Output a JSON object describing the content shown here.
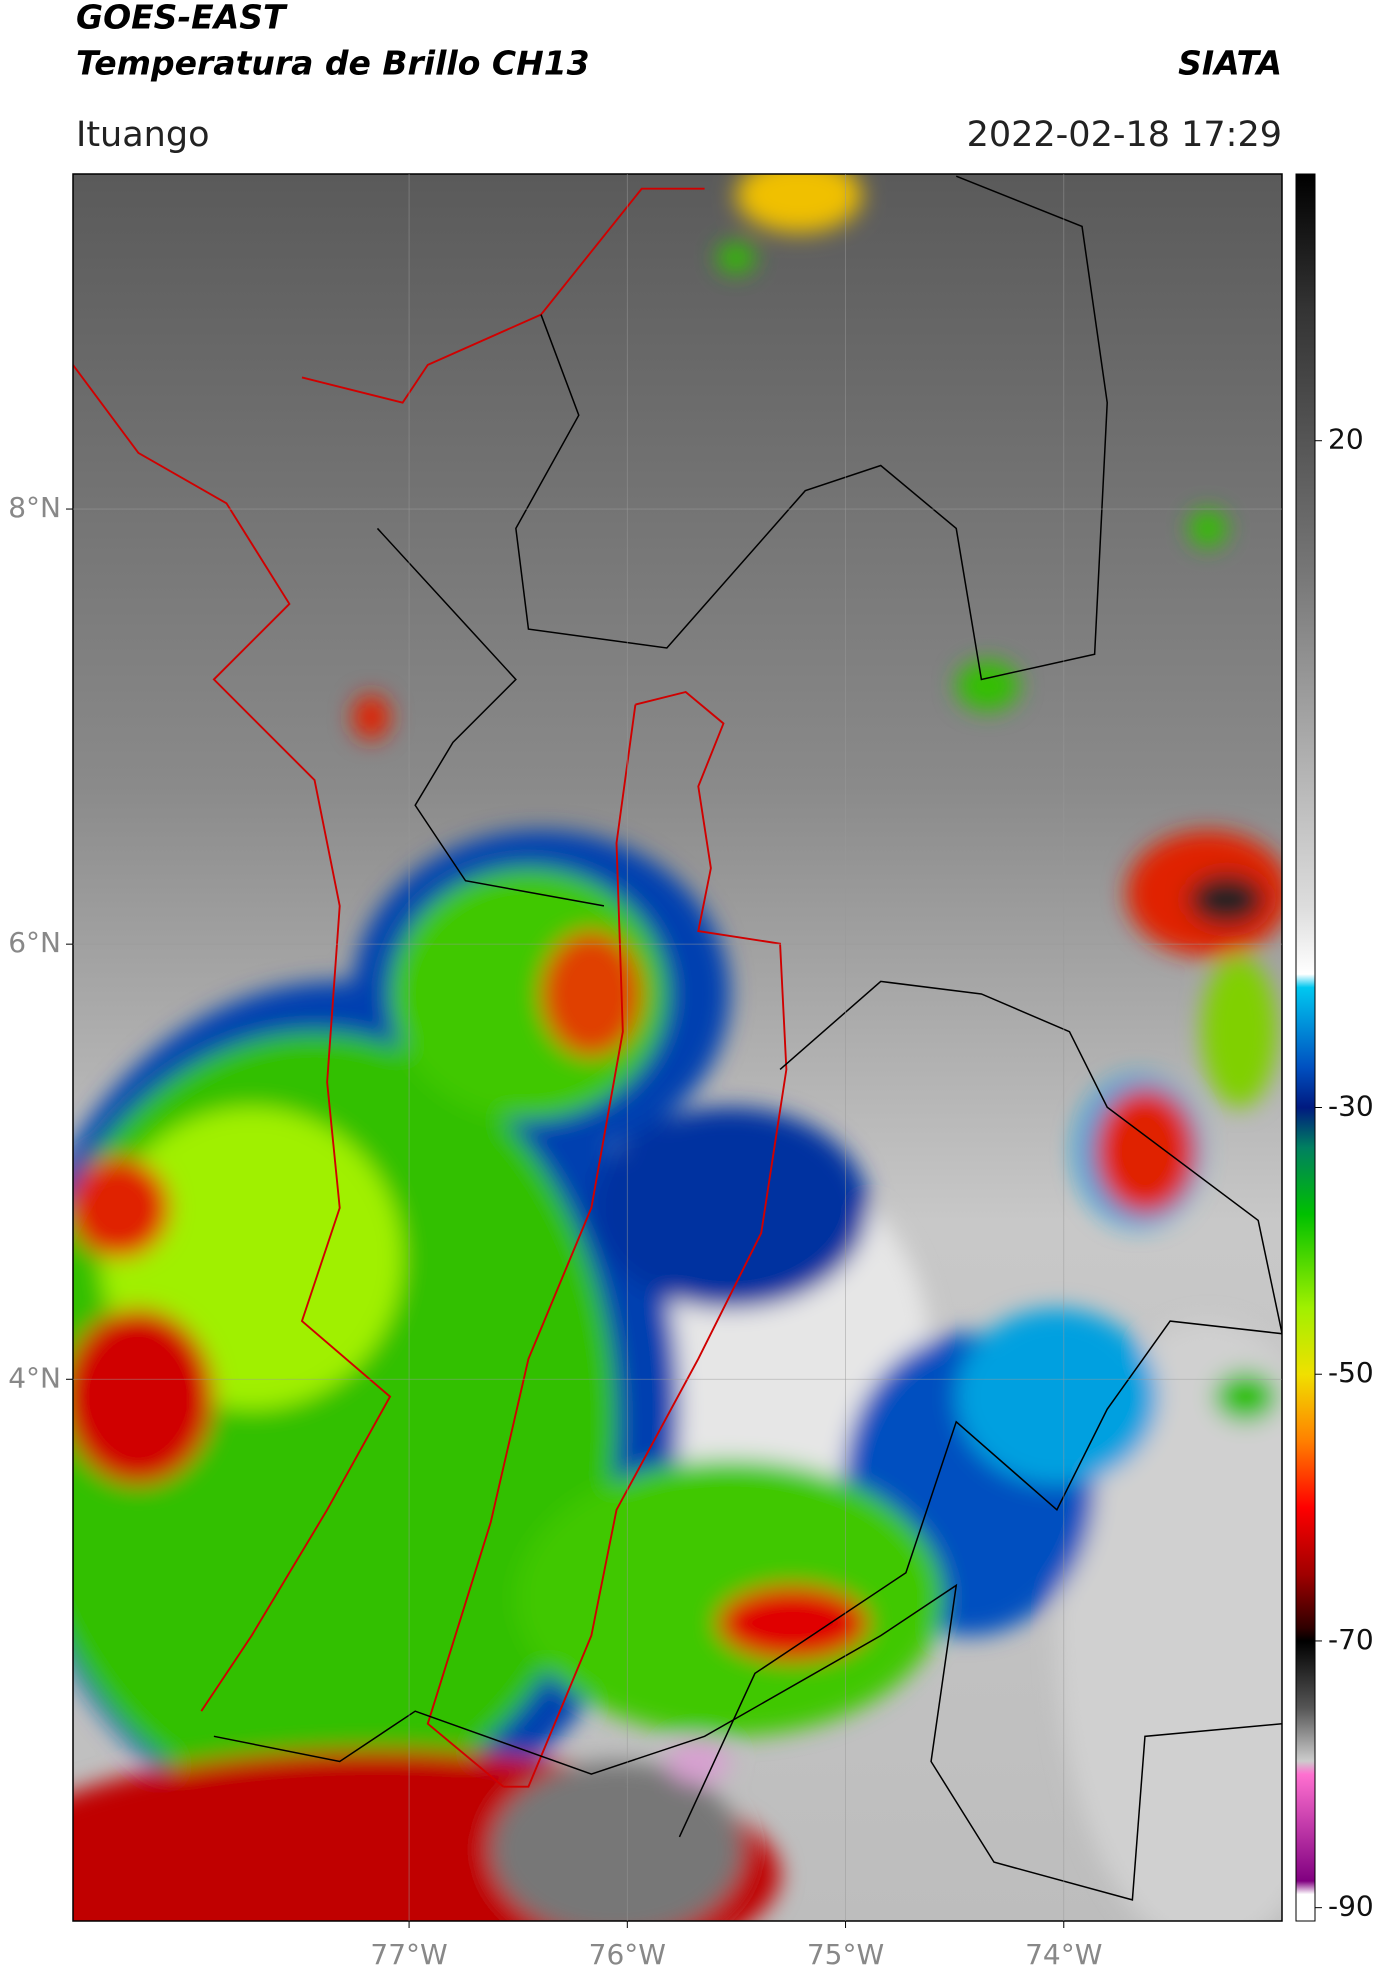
{
  "chart_data": {
    "type": "map",
    "title": "GOES-EAST",
    "subtitle": "Temperatura de Brillo CH13",
    "source": "SIATA",
    "location": "Ituango",
    "datetime": "2022-02-18 17:29",
    "xlim": [
      -78.54,
      -73.0
    ],
    "ylim": [
      1.51,
      9.54
    ],
    "xticks": [
      {
        "value": -77,
        "label": "77°W"
      },
      {
        "value": -76,
        "label": "76°W"
      },
      {
        "value": -75,
        "label": "75°W"
      },
      {
        "value": -74,
        "label": "74°W"
      }
    ],
    "yticks": [
      {
        "value": 4,
        "label": "4°N"
      },
      {
        "value": 6,
        "label": "6°N"
      },
      {
        "value": 8,
        "label": "8°N"
      }
    ],
    "grid": true,
    "colorbar": {
      "clim": [
        -91,
        40
      ],
      "ticks": [
        20,
        -30,
        -50,
        -70,
        -90
      ],
      "colormap": [
        {
          "value": 40,
          "color": "#000000"
        },
        {
          "value": 30,
          "color": "#333333"
        },
        {
          "value": 10,
          "color": "#777777"
        },
        {
          "value": -15,
          "color": "#dddddd"
        },
        {
          "value": -20,
          "color": "#ffffff"
        },
        {
          "value": -21,
          "color": "#00c8f0"
        },
        {
          "value": -27,
          "color": "#0050c0"
        },
        {
          "value": -30,
          "color": "#001a80"
        },
        {
          "value": -33,
          "color": "#008060"
        },
        {
          "value": -38,
          "color": "#00c000"
        },
        {
          "value": -45,
          "color": "#a0f000"
        },
        {
          "value": -50,
          "color": "#f0e000"
        },
        {
          "value": -55,
          "color": "#ff8000"
        },
        {
          "value": -60,
          "color": "#ff0000"
        },
        {
          "value": -65,
          "color": "#a00000"
        },
        {
          "value": -69,
          "color": "#300000"
        },
        {
          "value": -70,
          "color": "#000000"
        },
        {
          "value": -75,
          "color": "#555555"
        },
        {
          "value": -79,
          "color": "#cccccc"
        },
        {
          "value": -80,
          "color": "#ff70d0"
        },
        {
          "value": -88,
          "color": "#800080"
        },
        {
          "value": -89,
          "color": "#ffffff"
        },
        {
          "value": -91,
          "color": "#ffffff"
        }
      ]
    }
  }
}
